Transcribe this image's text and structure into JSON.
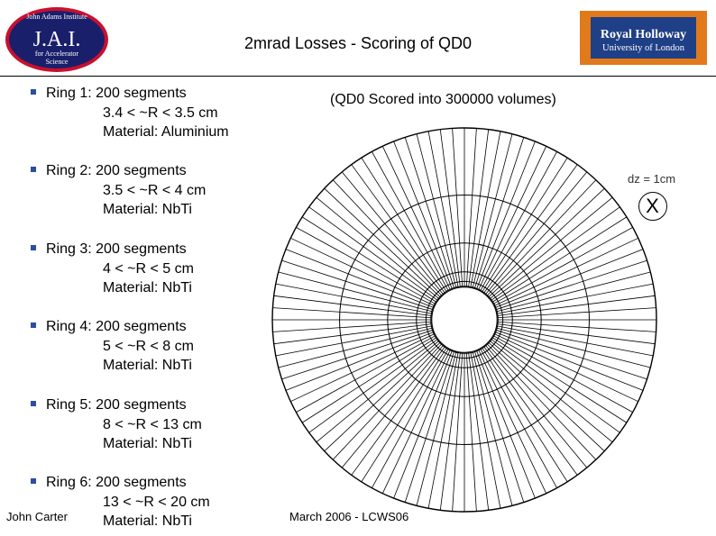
{
  "logo_left": {
    "line1": "John Adams Institute",
    "line2": "J.A.I.",
    "line3": "for Accelerator",
    "line4": "Science",
    "colors": {
      "ring": "#c8102e",
      "fill": "#1a1f6b",
      "text": "#ffffff"
    }
  },
  "logo_right": {
    "line1": "Royal Holloway",
    "line2": "University of London",
    "colors": {
      "background": "#1f3f86",
      "border": "#e07a1a",
      "text": "#ffffff"
    }
  },
  "title": "2mrad Losses - Scoring of QD0",
  "rings": [
    {
      "head": "Ring 1: 200 segments",
      "range": "3.4 < ~R < 3.5 cm",
      "material": "Material: Aluminium"
    },
    {
      "head": "Ring 2: 200 segments",
      "range": "3.5 < ~R < 4 cm",
      "material": "Material: NbTi"
    },
    {
      "head": "Ring 3: 200 segments",
      "range": "4 < ~R < 5 cm",
      "material": "Material: NbTi"
    },
    {
      "head": "Ring 4: 200 segments",
      "range": "5 < ~R < 8 cm",
      "material": "Material: NbTi"
    },
    {
      "head": "Ring 5: 200 segments",
      "range": "8 < ~R < 13 cm",
      "material": "Material: NbTi"
    },
    {
      "head": "Ring 6: 200 segments",
      "range": "13 < ~R < 20 cm",
      "material": "Material: NbTi"
    }
  ],
  "scored_note": "(QD0 Scored into 300000 volumes)",
  "dz": {
    "label": "dz = 1cm",
    "symbol": "X"
  },
  "diagram": {
    "ring_radii_cm": [
      3.4,
      3.5,
      4,
      5,
      8,
      13,
      20
    ],
    "drawn_spokes": 100
  },
  "footer": {
    "author": "John Carter",
    "date": "March 2006 - LCWS06"
  }
}
